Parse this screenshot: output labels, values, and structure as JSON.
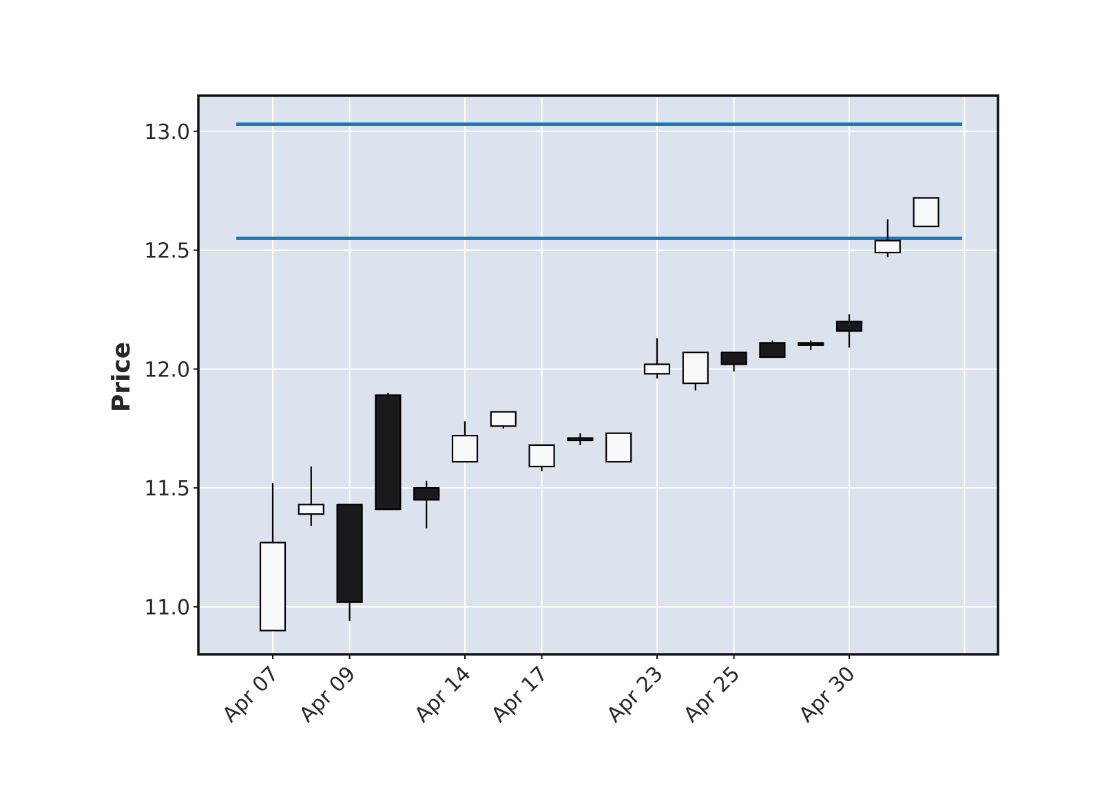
{
  "chart_data": {
    "type": "candlestick",
    "title": "",
    "xlabel": "",
    "ylabel": "Price",
    "ylim": [
      10.8,
      13.15
    ],
    "yticks": [
      11.0,
      11.5,
      12.0,
      12.5,
      13.0
    ],
    "ytick_labels": [
      "11.0",
      "11.5",
      "12.0",
      "12.5",
      "13.0"
    ],
    "xtick_labels": [
      "Apr 07",
      "Apr 09",
      "Apr 14",
      "Apr 17",
      "Apr 23",
      "Apr 25",
      "Apr 30"
    ],
    "xtick_candle_index": [
      0,
      2,
      5,
      7,
      10,
      12,
      15
    ],
    "grid": true,
    "colors": {
      "background": "#dde3ee",
      "up_body": "#f8f9fb",
      "down_body": "#1a1a1c",
      "edge": "#000000",
      "hlines": "#1f77b4"
    },
    "hlines": [
      12.55,
      13.03
    ],
    "candles": [
      {
        "open": 10.9,
        "high": 11.52,
        "low": 10.9,
        "close": 11.27
      },
      {
        "open": 11.39,
        "high": 11.59,
        "low": 11.34,
        "close": 11.43
      },
      {
        "open": 11.43,
        "high": 11.43,
        "low": 10.94,
        "close": 11.02
      },
      {
        "open": 11.89,
        "high": 11.9,
        "low": 11.41,
        "close": 11.41
      },
      {
        "open": 11.5,
        "high": 11.53,
        "low": 11.33,
        "close": 11.45
      },
      {
        "open": 11.61,
        "high": 11.78,
        "low": 11.61,
        "close": 11.72
      },
      {
        "open": 11.76,
        "high": 11.82,
        "low": 11.75,
        "close": 11.82
      },
      {
        "open": 11.59,
        "high": 11.68,
        "low": 11.57,
        "close": 11.68
      },
      {
        "open": 11.71,
        "high": 11.73,
        "low": 11.68,
        "close": 11.7
      },
      {
        "open": 11.61,
        "high": 11.73,
        "low": 11.61,
        "close": 11.73
      },
      {
        "open": 11.98,
        "high": 12.13,
        "low": 11.96,
        "close": 12.02
      },
      {
        "open": 11.94,
        "high": 12.07,
        "low": 11.91,
        "close": 12.07
      },
      {
        "open": 12.07,
        "high": 12.07,
        "low": 11.99,
        "close": 12.02
      },
      {
        "open": 12.11,
        "high": 12.12,
        "low": 12.05,
        "close": 12.05
      },
      {
        "open": 12.11,
        "high": 12.12,
        "low": 12.08,
        "close": 12.1
      },
      {
        "open": 12.2,
        "high": 12.23,
        "low": 12.09,
        "close": 12.16
      },
      {
        "open": 12.49,
        "high": 12.63,
        "low": 12.47,
        "close": 12.54
      },
      {
        "open": 12.6,
        "high": 12.72,
        "low": 12.6,
        "close": 12.72
      }
    ]
  }
}
